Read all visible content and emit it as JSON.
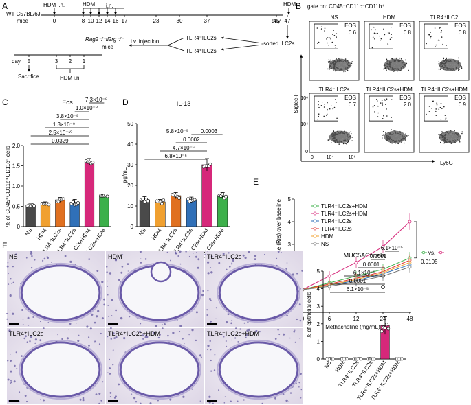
{
  "panel_letters": [
    "A",
    "B",
    "C",
    "D",
    "E",
    "F"
  ],
  "timeline": {
    "mice_label_1": "WT C57BL/6J",
    "mice_label_2": "mice",
    "hdm_in": "HDM i.n.",
    "hdm": "HDM",
    "in": "i.n.",
    "hdm_end": "HDM",
    "days": [
      "0",
      "8",
      "10",
      "12",
      "14",
      "16",
      "17",
      "23",
      "30",
      "37",
      "45",
      "47"
    ],
    "day_unit": "day",
    "sorted": "sorted ILC2s",
    "tlr4_neg": "TLR4⁻ILC2s",
    "tlr4_pos": "TLR4⁺ILC2s",
    "iv_injection": "i.v. injection",
    "recipient_1": "Rag2⁻/⁻Il2rg⁻/⁻",
    "recipient_2": "mice",
    "bottom_day": "day",
    "bottom_days": [
      "5",
      "3",
      "2",
      "1"
    ],
    "sacrifice": "Sacrifice",
    "bottom_hdm": "HDM",
    "bottom_in": "i.n."
  },
  "flow": {
    "gate": "gate on: CD45⁺CD11c⁻CD11b⁺",
    "y_label": "Siglec-F",
    "x_label": "Ly6G",
    "y_ticks": [
      "10⁶",
      "10⁴",
      "0"
    ],
    "x_ticks": [
      "0",
      "10⁴",
      "10⁶"
    ],
    "gate_label": "EOS",
    "plots": [
      {
        "title": "NS",
        "value": "0.6"
      },
      {
        "title": "HDM",
        "value": "0.8"
      },
      {
        "title": "TLR4⁺ILC2",
        "value": "0.8"
      },
      {
        "title": "TLR4⁻ILC2s",
        "value": "0.7"
      },
      {
        "title": "TLR4⁺ILC2s+HDM",
        "value": "2.0"
      },
      {
        "title": "TLR4⁻ILC2s+HDM",
        "value": "0.9"
      }
    ]
  },
  "chart_data": [
    {
      "type": "bar",
      "title": "Eos",
      "ylabel": "% of CD45⁺CD11b⁺CD11c⁻ cells",
      "categories": [
        "NS",
        "HDM",
        "TLR4⁻ILC2s",
        "TLR4⁺ILC2s",
        "TLR4⁺ILC2s+HDM",
        "TLR4⁻ILC2s+HDM"
      ],
      "values": [
        0.52,
        0.56,
        0.66,
        0.6,
        1.6,
        0.76
      ],
      "errors": [
        0.04,
        0.05,
        0.06,
        0.07,
        0.08,
        0.04
      ],
      "colors": [
        "#4a4a4a",
        "#f0a030",
        "#e07020",
        "#3070b8",
        "#d6287a",
        "#3cb04a"
      ],
      "yticks": [
        "0",
        "0.5",
        "1.0",
        "1.5",
        "2.0"
      ],
      "ylim": [
        0,
        2.0
      ],
      "pvalues": [
        "2.5×10⁻¹⁰",
        "1.3×10⁻⁹",
        "3.8×10⁻⁹",
        "1.0×10⁻⁸",
        "7.3×10⁻⁸",
        "0.0329"
      ]
    },
    {
      "type": "bar",
      "title": "IL-13",
      "ylabel": "pg/mL",
      "categories": [
        "NS",
        "HDM",
        "TLR4⁻ILC2s",
        "TLR4⁺ILC2s",
        "TLR4⁺ILC2s+HDM",
        "TLR4⁻ILC2s+HDM"
      ],
      "values": [
        13,
        12,
        15,
        13,
        30,
        15
      ],
      "errors": [
        1.5,
        1.2,
        1.5,
        1.3,
        3.0,
        1.5
      ],
      "colors": [
        "#4a4a4a",
        "#f0a030",
        "#e07020",
        "#3070b8",
        "#d6287a",
        "#3cb04a"
      ],
      "yticks": [
        "0",
        "10",
        "20",
        "30",
        "40",
        "50"
      ],
      "ylim": [
        0,
        50
      ],
      "pvalues": [
        "6.8×10⁻⁶",
        "4.7×10⁻⁶",
        "0.0002",
        "5.8×10⁻⁵",
        "0.0003"
      ]
    },
    {
      "type": "line",
      "ylabel": "Fold increase in resistance (Rrs) over baseline",
      "xlabel": "Methacholine (mg/mL)",
      "x": [
        "0",
        "6",
        "12",
        "24",
        "48"
      ],
      "yticks": [
        "0",
        "1",
        "2",
        "3",
        "4",
        "5"
      ],
      "ylim": [
        0,
        5
      ],
      "series": [
        {
          "name": "TLR4⁻ILC2s+HDM",
          "values": [
            1.0,
            1.3,
            1.6,
            1.9,
            2.4
          ],
          "color": "#3cb04a"
        },
        {
          "name": "TLR4⁺ILC2s+HDM",
          "values": [
            1.0,
            1.6,
            2.2,
            2.9,
            4.0
          ],
          "color": "#d6287a"
        },
        {
          "name": "TLR4⁻ILC2s",
          "values": [
            1.0,
            1.2,
            1.4,
            1.7,
            2.1
          ],
          "color": "#3070b8"
        },
        {
          "name": "TLR4⁺ILC2s",
          "values": [
            1.0,
            1.25,
            1.5,
            1.8,
            2.3
          ],
          "color": "#e03030"
        },
        {
          "name": "HDM",
          "values": [
            1.0,
            1.2,
            1.45,
            1.75,
            2.2
          ],
          "color": "#f0a030"
        },
        {
          "name": "NS",
          "values": [
            1.0,
            1.15,
            1.35,
            1.6,
            2.0
          ],
          "color": "#707070"
        }
      ],
      "comparison_vs": "vs.",
      "comparison_p": "0.0105"
    },
    {
      "type": "bar",
      "title": "MUC5AC⁺cells",
      "ylabel": "% of epithelial cells",
      "categories": [
        "NS",
        "HDM",
        "TLR4⁻ILC2s",
        "TLR4⁺ILC2s",
        "TLR4⁺ILC2s+HDM",
        "TLR4⁻ILC2s+HDM"
      ],
      "values": [
        0,
        0,
        0,
        0,
        1.9,
        0
      ],
      "errors": [
        0,
        0,
        0,
        0,
        0.5,
        0
      ],
      "colors": [
        "#4a4a4a",
        "#f0a030",
        "#e07020",
        "#3070b8",
        "#d6287a",
        "#3cb04a"
      ],
      "yticks": [
        "0",
        "1",
        "2",
        "3",
        "4",
        "5"
      ],
      "ylim": [
        0,
        5
      ],
      "pvalues": [
        "6.1×10⁻⁵",
        "0.0001",
        "6.1×10⁻⁵",
        "0.0001",
        "0.0001",
        "6.1×10⁻⁵"
      ]
    }
  ],
  "histology": {
    "labels": [
      "NS",
      "HDM",
      "TLR4⁻ILC2s",
      "TLR4⁺ILC2s",
      "TLR4⁺ILC2s+HDM",
      "TLR4⁻ILC2s+HDM"
    ]
  }
}
